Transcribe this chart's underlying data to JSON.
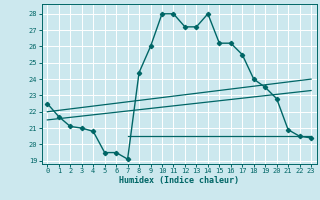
{
  "xlabel": "Humidex (Indice chaleur)",
  "xlim": [
    -0.5,
    23.5
  ],
  "ylim": [
    18.8,
    28.6
  ],
  "yticks": [
    19,
    20,
    21,
    22,
    23,
    24,
    25,
    26,
    27,
    28
  ],
  "xticks": [
    0,
    1,
    2,
    3,
    4,
    5,
    6,
    7,
    8,
    9,
    10,
    11,
    12,
    13,
    14,
    15,
    16,
    17,
    18,
    19,
    20,
    21,
    22,
    23
  ],
  "bg_color": "#cce8ee",
  "grid_color": "#ffffff",
  "line_color": "#006666",
  "line1_x": [
    0,
    1,
    2,
    3,
    4,
    5,
    6,
    7,
    8,
    9,
    10,
    11,
    12,
    13,
    14,
    15,
    16,
    17,
    18,
    19,
    20,
    21,
    22,
    23
  ],
  "line1_y": [
    22.5,
    21.7,
    21.1,
    21.0,
    20.8,
    19.5,
    19.5,
    19.1,
    24.4,
    26.0,
    28.0,
    28.0,
    27.2,
    27.2,
    28.0,
    26.2,
    26.2,
    25.5,
    24.0,
    23.5,
    22.8,
    20.9,
    20.5,
    20.4
  ],
  "line2_x": [
    0,
    23
  ],
  "line2_y": [
    22.0,
    24.0
  ],
  "line3_x": [
    0,
    23
  ],
  "line3_y": [
    21.5,
    23.3
  ],
  "line4_x": [
    7,
    23
  ],
  "line4_y": [
    20.5,
    20.5
  ],
  "line5_x": [
    7,
    14,
    23
  ],
  "line5_y": [
    20.5,
    20.5,
    20.4
  ]
}
